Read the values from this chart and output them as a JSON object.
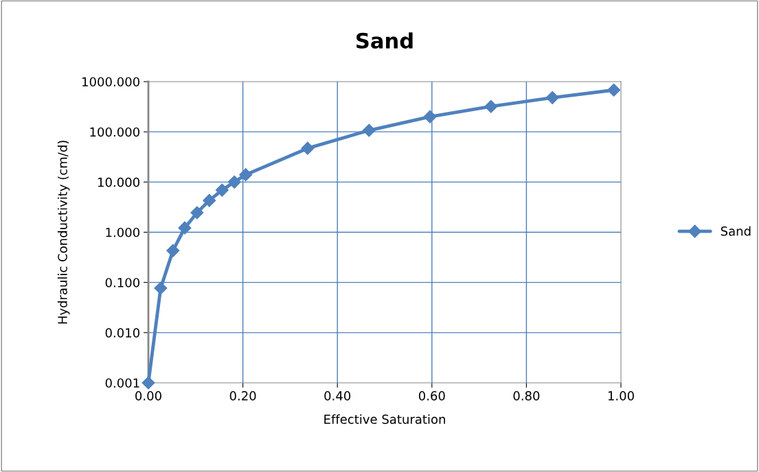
{
  "chart_data": {
    "type": "line",
    "title": "Sand",
    "xlabel": "Effective Saturation",
    "ylabel": "Hydraulic Conductivity (cm/d)",
    "log": "y",
    "grid": true,
    "legend": "right",
    "marker": "diamond",
    "line_style": "solid",
    "xlim": [
      0,
      1
    ],
    "ylim": [
      0.001,
      1000
    ],
    "xticks": [
      {
        "value": 0,
        "label": "0.00"
      },
      {
        "value": 0.2,
        "label": "0.20"
      },
      {
        "value": 0.4,
        "label": "0.40"
      },
      {
        "value": 0.6,
        "label": "0.60"
      },
      {
        "value": 0.8,
        "label": "0.80"
      },
      {
        "value": 1,
        "label": "1.00"
      }
    ],
    "yticks": [
      {
        "value": 0.001,
        "label": "0.001"
      },
      {
        "value": 0.01,
        "label": "0.010"
      },
      {
        "value": 0.1,
        "label": "0.100"
      },
      {
        "value": 1,
        "label": "1.000"
      },
      {
        "value": 10,
        "label": "10.000"
      },
      {
        "value": 100,
        "label": "100.000"
      },
      {
        "value": 1000,
        "label": "1000.000"
      }
    ],
    "x": [
      0,
      0.026,
      0.052,
      0.077,
      0.103,
      0.129,
      0.156,
      0.182,
      0.206,
      0.337,
      0.467,
      0.596,
      0.725,
      0.855,
      0.985
    ],
    "series": [
      {
        "name": "Sand",
        "color": "#4f81bd",
        "values": [
          0.001,
          0.077,
          0.43,
          1.22,
          2.45,
          4.3,
          6.9,
          10,
          14,
          47,
          107,
          200,
          320,
          480,
          680
        ]
      }
    ]
  }
}
